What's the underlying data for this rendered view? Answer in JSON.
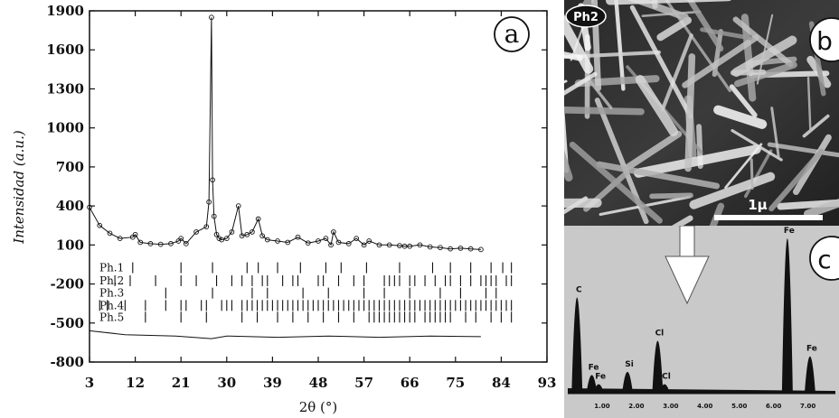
{
  "chart_data": [
    {
      "panel": "a",
      "type": "scatter",
      "panel_letter": "a",
      "xlabel": "2θ (°)",
      "ylabel_main": "Intensidad",
      "ylabel_unit": "(a.u.)",
      "xlim": [
        3,
        93
      ],
      "ylim": [
        -800,
        1900
      ],
      "x_ticks": [
        "3",
        "12",
        "21",
        "30",
        "39",
        "48",
        "57",
        "66",
        "75",
        "84",
        "93"
      ],
      "y_ticks": [
        "1900",
        "1600",
        "1300",
        "1000",
        "700",
        "400",
        "100",
        "-200",
        "-500",
        "-800"
      ],
      "x_tick_values": [
        3,
        12,
        21,
        30,
        39,
        48,
        57,
        66,
        75,
        84,
        93
      ],
      "y_tick_values": [
        1900,
        1600,
        1300,
        1000,
        700,
        400,
        100,
        -200,
        -500,
        -800
      ],
      "observed": {
        "x": [
          3,
          5,
          7,
          9,
          11.5,
          12,
          13,
          15,
          17,
          19,
          20.5,
          21,
          22,
          24,
          26,
          26.5,
          27,
          27.2,
          27.5,
          28,
          28.5,
          29,
          30,
          31,
          32.3,
          33,
          34,
          35,
          36.2,
          37,
          38,
          40,
          42,
          44,
          46,
          48,
          49.5,
          50.5,
          51,
          52,
          54,
          55.5,
          57,
          58,
          60,
          62,
          64,
          65,
          66,
          68,
          70,
          72,
          74,
          76,
          78,
          80
        ],
        "y": [
          390,
          250,
          190,
          150,
          160,
          180,
          120,
          110,
          105,
          110,
          130,
          150,
          110,
          200,
          240,
          430,
          1850,
          600,
          320,
          180,
          150,
          140,
          150,
          200,
          400,
          170,
          180,
          200,
          300,
          170,
          140,
          130,
          120,
          160,
          115,
          130,
          150,
          100,
          200,
          120,
          110,
          150,
          100,
          130,
          100,
          100,
          95,
          90,
          90,
          100,
          85,
          80,
          70,
          75,
          70,
          65
        ]
      },
      "difference": {
        "x": [
          3,
          10,
          20,
          27,
          30,
          40,
          50,
          60,
          70,
          80
        ],
        "y": [
          -560,
          -590,
          -600,
          -620,
          -600,
          -610,
          -600,
          -610,
          -600,
          -605
        ]
      },
      "phases": [
        {
          "name": "Ph.1",
          "offset": -75,
          "positions": [
            11.5,
            21,
            27.2,
            34,
            36.2,
            40,
            44.5,
            49.5,
            52.5,
            57.5,
            64,
            70.5,
            74,
            78,
            82,
            84.3,
            86
          ]
        },
        {
          "name": "Ph.2",
          "offset": -175,
          "positions": [
            8,
            11,
            16,
            21,
            24,
            28,
            31,
            33,
            35,
            37,
            38,
            41,
            43,
            44,
            48,
            49,
            52,
            55,
            57,
            61,
            62,
            63,
            64,
            66,
            67,
            69,
            71,
            73,
            74,
            76,
            78,
            80,
            81,
            82,
            83,
            85,
            86
          ]
        },
        {
          "name": "Ph.3",
          "offset": -270,
          "positions": [
            18,
            27.2,
            35,
            38,
            45,
            50,
            57,
            61,
            66,
            72,
            76,
            81,
            83
          ]
        },
        {
          "name": "Ph.4",
          "offset": -365,
          "positions": [
            5,
            6.5,
            10,
            14,
            18,
            21,
            22,
            25,
            26,
            29,
            30,
            31,
            33,
            34,
            35,
            36,
            37,
            38,
            39,
            40,
            41,
            42,
            43,
            44,
            45,
            46,
            47,
            48,
            49,
            50,
            51,
            52,
            53,
            54,
            55,
            56,
            57,
            58,
            59,
            60,
            61,
            62,
            63,
            64,
            65,
            66,
            67,
            68,
            69,
            70,
            71,
            72,
            73,
            74,
            75,
            76,
            77,
            78,
            79,
            80,
            81,
            82,
            83,
            84,
            85,
            86
          ]
        },
        {
          "name": "Ph.5",
          "offset": -455,
          "positions": [
            14,
            21,
            26,
            33,
            36,
            40,
            43,
            46,
            49,
            52,
            55,
            58,
            59,
            60,
            61,
            62,
            63,
            64,
            65,
            66,
            67,
            69,
            70,
            71,
            72,
            73,
            74,
            77,
            79,
            82,
            84,
            86
          ]
        }
      ]
    },
    {
      "panel": "c",
      "type": "line",
      "panel_letter": "c",
      "x_ticks": [
        "1.00",
        "2.00",
        "3.00",
        "4.00",
        "5.00",
        "6.00",
        "7.00"
      ],
      "xlim": [
        0,
        7.8
      ],
      "peaks": [
        {
          "label": "C",
          "x": 0.27,
          "height": 0.62
        },
        {
          "label": "Fe",
          "x": 0.7,
          "height": 0.12
        },
        {
          "label": "Fe",
          "x": 0.9,
          "height": 0.06
        },
        {
          "label": "Si",
          "x": 1.74,
          "height": 0.14
        },
        {
          "label": "Cl",
          "x": 2.62,
          "height": 0.34
        },
        {
          "label": "Cl",
          "x": 2.82,
          "height": 0.06
        },
        {
          "label": "Fe",
          "x": 6.4,
          "height": 1.0
        },
        {
          "label": "Fe",
          "x": 7.06,
          "height": 0.24
        }
      ]
    }
  ],
  "sem": {
    "tag": "Ph2",
    "panel_letter": "b",
    "scale": "1μ"
  }
}
